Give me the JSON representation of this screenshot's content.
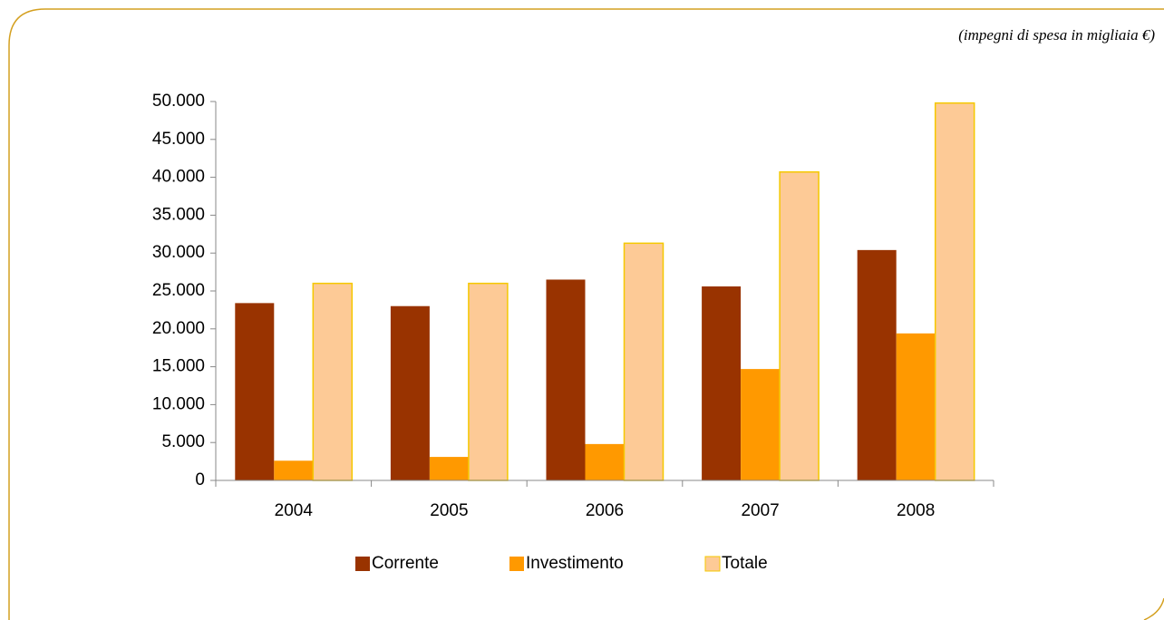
{
  "chart_data": {
    "type": "bar",
    "subtitle": "(impegni di spesa in migliaia €)",
    "categories": [
      "2004",
      "2005",
      "2006",
      "2007",
      "2008"
    ],
    "series": [
      {
        "name": "Corrente",
        "color": "#993300",
        "values": [
          23400,
          23000,
          26500,
          25600,
          30400
        ]
      },
      {
        "name": "Investimento",
        "color": "#ff9900",
        "values": [
          2600,
          3100,
          4800,
          14700,
          19400
        ]
      },
      {
        "name": "Totale",
        "color": "#fdca96",
        "values": [
          26000,
          26000,
          31300,
          40700,
          49800
        ]
      }
    ],
    "ylim": [
      0,
      50000
    ],
    "yticks": [
      0,
      {
        "value": 5000,
        "label": "5.000"
      },
      {
        "value": 10000,
        "label": "10.000"
      },
      {
        "value": 15000,
        "label": "15.000"
      },
      {
        "value": 20000,
        "label": "20.000"
      },
      {
        "value": 25000,
        "label": "25.000"
      },
      {
        "value": 30000,
        "label": "30.000"
      },
      {
        "value": 35000,
        "label": "35.000"
      },
      {
        "value": 40000,
        "label": "40.000"
      },
      {
        "value": 45000,
        "label": "45.000"
      },
      {
        "value": 50000,
        "label": "50.000"
      }
    ],
    "legend": "bottom",
    "grid": false
  }
}
